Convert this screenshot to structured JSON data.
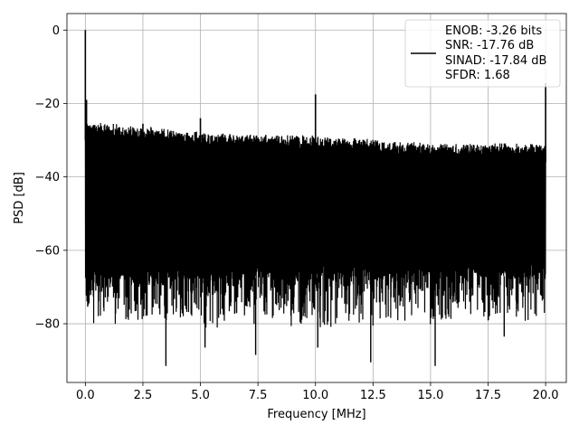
{
  "chart_data": {
    "type": "line",
    "xlabel": "Frequency [MHz]",
    "ylabel": "PSD [dB]",
    "xlim": [
      -0.8,
      20.9
    ],
    "ylim": [
      -96,
      4.5
    ],
    "grid": true,
    "line_color": "#000000",
    "x_ticks": [
      0.0,
      2.5,
      5.0,
      7.5,
      10.0,
      12.5,
      15.0,
      17.5,
      20.0
    ],
    "x_tick_labels": [
      "0.0",
      "2.5",
      "5.0",
      "7.5",
      "10.0",
      "12.5",
      "15.0",
      "17.5",
      "20.0"
    ],
    "y_ticks": [
      0,
      -20,
      -40,
      -60,
      -80
    ],
    "y_tick_labels": [
      "0",
      "−20",
      "−40",
      "−60",
      "−80"
    ],
    "legend": {
      "placement": "top-right",
      "entries": [
        "ENOB: -3.26 bits",
        "SNR: -17.76 dB",
        "SINAD: -17.84 dB",
        "SFDR: 1.68"
      ]
    },
    "series": [
      {
        "x_range": [
          0,
          20
        ],
        "noise_top_db": [
          [
            0.05,
            -26
          ],
          [
            5,
            -29
          ],
          [
            10,
            -30
          ],
          [
            15,
            -32
          ],
          [
            20,
            -32
          ]
        ],
        "noise_bottom_db": [
          [
            0.05,
            -68
          ],
          [
            20,
            -67
          ]
        ],
        "spikes": [
          {
            "x": 0.0,
            "y": 0.0
          },
          {
            "x": 0.05,
            "y": -19
          },
          {
            "x": 2.5,
            "y": -25.5
          },
          {
            "x": 5.0,
            "y": -24
          },
          {
            "x": 10.0,
            "y": -17.5
          },
          {
            "x": 20.0,
            "y": -14.5
          }
        ],
        "dips": [
          {
            "x": 3.5,
            "y": -91.5
          },
          {
            "x": 5.2,
            "y": -86.5
          },
          {
            "x": 7.4,
            "y": -88.5
          },
          {
            "x": 10.1,
            "y": -86.5
          },
          {
            "x": 12.4,
            "y": -90.5
          },
          {
            "x": 15.2,
            "y": -91.5
          },
          {
            "x": 18.2,
            "y": -83.5
          }
        ]
      }
    ]
  }
}
